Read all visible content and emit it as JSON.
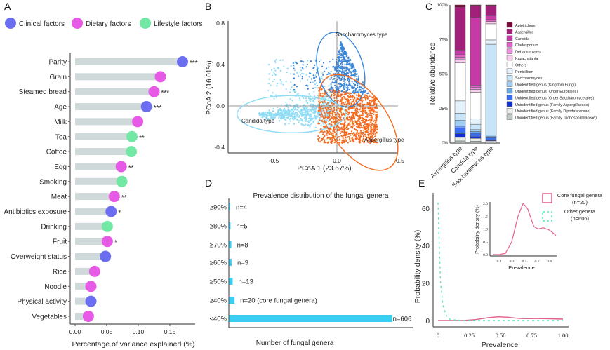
{
  "colors": {
    "clinical": "#6b6ef0",
    "dietary": "#e65ae6",
    "lifestyle": "#72e8a4",
    "bar_grey": "#cfd9d9",
    "candida_type": "#8fdcf5",
    "saccharomyces_type": "#3a86d8",
    "aspergillus_type": "#f56a1e",
    "prevalence_bar": "#3ccdf5",
    "core_curve": "#e0608a",
    "other_curve": "#5ee8b8"
  },
  "chart_data": [
    {
      "panel_label": "A",
      "type": "bar",
      "orientation": "horizontal",
      "legend": {
        "placement": "top",
        "entries": [
          {
            "key": "clinical",
            "label": "Clinical factors"
          },
          {
            "key": "dietary",
            "label": "Dietary factors"
          },
          {
            "key": "lifestyle",
            "label": "Lifestyle factors"
          }
        ]
      },
      "xlabel": "Percentage of variance explained (%)",
      "xlim": [
        0,
        0.18
      ],
      "xticks": [
        "0.00",
        "0.05",
        "0.10",
        "0.15"
      ],
      "categories": [
        "Parity",
        "Grain",
        "Steamed bread",
        "Age",
        "Milk",
        "Tea",
        "Coffee",
        "Egg",
        "Smoking",
        "Meat",
        "Antibiotics exposure",
        "Drinking",
        "Fruit",
        "Overweight status",
        "Rice",
        "Noodle",
        "Physical activity",
        "Vegetables"
      ],
      "values": [
        0.17,
        0.135,
        0.125,
        0.113,
        0.099,
        0.09,
        0.089,
        0.073,
        0.074,
        0.062,
        0.057,
        0.051,
        0.051,
        0.048,
        0.031,
        0.025,
        0.025,
        0.021
      ],
      "groups": [
        "clinical",
        "dietary",
        "dietary",
        "clinical",
        "dietary",
        "lifestyle",
        "lifestyle",
        "dietary",
        "lifestyle",
        "dietary",
        "clinical",
        "lifestyle",
        "dietary",
        "clinical",
        "dietary",
        "dietary",
        "clinical",
        "dietary"
      ],
      "significance": [
        "***",
        "",
        "***",
        "***",
        "",
        "**",
        "",
        "**",
        "",
        "**",
        "*",
        "",
        "*",
        "",
        "",
        "",
        "",
        ""
      ]
    },
    {
      "panel_label": "B",
      "type": "scatter",
      "xlabel": "PCoA 1 (23.67%)",
      "ylabel": "PCoA 2  (16.01%)",
      "xlim": [
        -0.86,
        0.5
      ],
      "ylim": [
        -0.45,
        0.8
      ],
      "xticks": [
        "-0.5",
        "0.0",
        "0.5"
      ],
      "yticks": [
        "0.8",
        "0.4",
        "0.0",
        "-0.4"
      ],
      "clusters": [
        {
          "name": "Saccharomyces type",
          "color_key": "saccharomyces_type",
          "ellipse": {
            "cx": 0.03,
            "cy": 0.35,
            "rx": 0.18,
            "ry": 0.37,
            "angle": -15
          }
        },
        {
          "name": "Candida type",
          "color_key": "candida_type",
          "ellipse": {
            "cx": -0.36,
            "cy": -0.08,
            "rx": 0.43,
            "ry": 0.18,
            "angle": 0
          }
        },
        {
          "name": "Aspergillus type",
          "color_key": "aspergillus_type",
          "ellipse": {
            "cx": 0.17,
            "cy": -0.16,
            "rx": 0.23,
            "ry": 0.53,
            "angle": -35
          }
        }
      ]
    },
    {
      "panel_label": "C",
      "type": "bar",
      "stacked": true,
      "ylabel": "Relative abundance",
      "ylim": [
        0,
        100
      ],
      "yticks": [
        "0%",
        "25%",
        "50%",
        "75%",
        "100%"
      ],
      "categories": [
        "Aspergillus type",
        "Candida type",
        "Saccharomyces type"
      ],
      "series": [
        {
          "name": "Apiotrichum",
          "color": "#7a0a3a",
          "values": [
            1.7,
            0.5,
            0.5
          ]
        },
        {
          "name": "Aspergillus",
          "color": "#a3207a",
          "values": [
            31.0,
            8.5,
            7.3
          ]
        },
        {
          "name": "Candida",
          "color": "#c63aa8",
          "values": [
            3.1,
            49.1,
            2.9
          ]
        },
        {
          "name": "Cladosporium",
          "color": "#e060c8",
          "values": [
            2.0,
            1.7,
            1.3
          ]
        },
        {
          "name": "Debaryomyces",
          "color": "#ee92dc",
          "values": [
            1.4,
            1.4,
            0.5
          ]
        },
        {
          "name": "Kazachstania",
          "color": "#f8cdee",
          "values": [
            2.8,
            2.0,
            1.2
          ]
        },
        {
          "name": "Others",
          "color": "#ffffff",
          "values": [
            27.5,
            19.2,
            11.7
          ]
        },
        {
          "name": "Penicillium",
          "color": "#e6f2fb",
          "values": [
            9.0,
            4.0,
            3.1
          ]
        },
        {
          "name": "Saccharomyces",
          "color": "#c8e4f8",
          "values": [
            5.1,
            3.9,
            65.7
          ]
        },
        {
          "name": "Unidentified genus (Kingdom Fungi)",
          "color": "#a0cdf2",
          "values": [
            4.2,
            1.4,
            1.2
          ]
        },
        {
          "name": "Unidentified genus (Order Eurotiales)",
          "color": "#6aa8ec",
          "values": [
            1.4,
            1.2,
            0.8
          ]
        },
        {
          "name": "Unidentified genus (Order Saccharomycetales)",
          "color": "#3a6ef0",
          "values": [
            4.0,
            2.5,
            1.8
          ]
        },
        {
          "name": "Unindentified genus (Family Aspergillaceae)",
          "color": "#1030d0",
          "values": [
            2.7,
            1.2,
            0.5
          ]
        },
        {
          "name": "Unindentified genus (Family Dipodascaceae)",
          "color": "#e8ece8",
          "values": [
            2.6,
            2.2,
            0.8
          ]
        },
        {
          "name": "Unindentified genus (Family Trichosporonaceae)",
          "color": "#bfcac6",
          "values": [
            1.5,
            1.2,
            0.7
          ]
        }
      ]
    },
    {
      "panel_label": "D",
      "type": "bar",
      "orientation": "horizontal",
      "title": "Prevalence distribution of the fungal genera",
      "xlabel": "Number of fungal genera",
      "categories": [
        "≥90%",
        "≥80%",
        "≥70%",
        "≥60%",
        "≥50%",
        "≥40%",
        "<40%"
      ],
      "values": [
        4,
        5,
        8,
        9,
        13,
        20,
        606
      ],
      "data_labels": [
        "n=4",
        "n=5",
        "n=8",
        "n=9",
        "n=13",
        "n=20 (core fungal genera)",
        "n=606"
      ]
    },
    {
      "panel_label": "E",
      "type": "line",
      "xlabel": "Prevalence",
      "ylabel": "Probability density (%)",
      "xlim": [
        0,
        1
      ],
      "ylim": [
        0,
        65
      ],
      "xticks": [
        "0",
        "0.25",
        "0.50",
        "0.75",
        "1.00"
      ],
      "yticks": [
        "0",
        "20",
        "40",
        "60"
      ],
      "legend": {
        "placement": "top-right",
        "entries": [
          {
            "label": "Core fungal genera",
            "sublabel": "(n=20)",
            "style": "solid"
          },
          {
            "label": "Other genera",
            "sublabel": "(n=606)",
            "style": "dashed"
          }
        ]
      },
      "series": [
        {
          "name": "Core fungal genera",
          "x": [
            0,
            0.1,
            0.2,
            0.3,
            0.4,
            0.48,
            0.55,
            0.65,
            0.72,
            0.8,
            0.9,
            1.0
          ],
          "y": [
            0,
            0,
            0.05,
            0.5,
            1.5,
            2.0,
            1.8,
            1.1,
            1.0,
            1.05,
            0.95,
            0.75
          ]
        },
        {
          "name": "Other genera",
          "x": [
            0,
            0.01,
            0.02,
            0.04,
            0.07,
            0.1,
            0.2,
            0.5,
            1.0
          ],
          "y": [
            63,
            40,
            20,
            8,
            2,
            0.5,
            0,
            0,
            0
          ]
        }
      ],
      "inset": {
        "xlabel": "Prevalence",
        "ylabel": "Probability density (%)",
        "xlim": [
          0,
          1
        ],
        "ylim": [
          0,
          2.1
        ],
        "xticks": [
          "0.1",
          "0.3",
          "0.5",
          "0.7",
          "0.9"
        ],
        "yticks": [
          "0.0",
          "0.5",
          "1.0",
          "1.5",
          "2.0"
        ],
        "series_name": "Core fungal genera"
      }
    }
  ]
}
